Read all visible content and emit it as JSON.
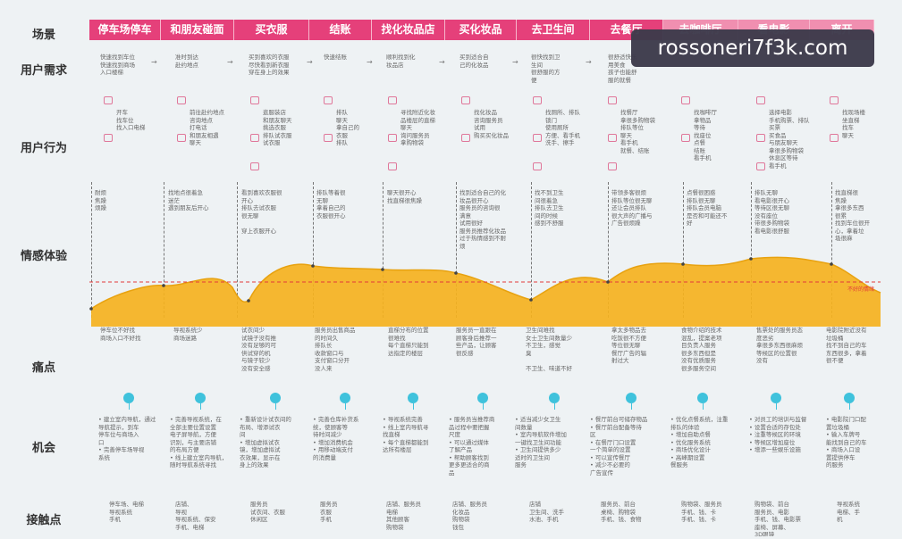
{
  "row_labels": {
    "scene": "场景",
    "need": "用户需求",
    "behavior": "用户行为",
    "emotion": "情感体验",
    "pain": "痛点",
    "opportunity": "机会",
    "touchpoint": "接触点"
  },
  "scenes": [
    "停车场停车",
    "和朋友碰面",
    "买衣服",
    "结账",
    "找化妆品店",
    "买化妆品",
    "去卫生间",
    "去餐厅",
    "去咖啡厅",
    "看电影",
    "离开"
  ],
  "needs": [
    "快速找到车位\n快速找到商场\n入口楼梯",
    "准时到达\n赴约地点",
    "买到喜欢的衣服\n尽快看到新衣服\n穿在身上的效果",
    "快速结账",
    "顺利找到化\n妆品店",
    "买到适合自\n己的化妆品",
    "很快找到卫\n生间\n很舒服的方\n便",
    "很舒适快乐\n用美食\n孩子也能舒\n服的就餐",
    "",
    "",
    ""
  ],
  "behaviors": [
    "开车\n找车位\n找入口电梯",
    "前往赴约地点\n咨询地点\n打电话\n和朋友相遇\n聊天",
    "逛服装店\n和朋友聊天\n挑选衣服\n排队试衣服\n试衣服",
    "排队\n聊天\n拿自己的\n衣服\n排队",
    "寻找附近化妆\n品楼层的直梯\n聊天\n询问服务员\n拿购物袋",
    "找化妆品\n咨询服务员\n试用\n购买买化妆品",
    "找厕所、排队\n锁门\n使用厕所\n方便、看手机\n洗手、擦手",
    "找餐厅\n拿很多购物袋\n排队等位\n聊天\n看手机\n就餐、结账",
    "找咖啡厅\n拿物品\n等待\n找座位\n点餐\n结账\n看手机",
    "选择电影\n手机购票、排队\n买票\n买食品\n与朋友聊天\n拿很多购物袋\n休息区等待\n看手机",
    "找现场楼\n坐直梯\n找车\n聊天"
  ],
  "emotions": [
    "耐烦\n焦躁\n烦躁",
    "找地点很着急\n迷茫\n遇到朋友后开心",
    "看到喜欢衣服很\n开心\n排队去试衣服\n很无聊\n\n穿上衣服开心",
    "排队等着很\n无聊\n拿着自己的\n衣服很开心",
    "聊天很开心\n找直梯很焦躁",
    "找到适合自己的化\n妆品很开心\n服务员的咨询很\n满意\n试用很好\n服务员推荐化妆品\n过于热情感到不耐\n烦",
    "找不到卫生\n间很着急\n排队去卫生\n间的时候\n感到不舒服",
    "带领多客很烦\n排队等位很无聊\n还让会员排队\n很大声的广播与\n广告很烦躁",
    "点餐很困惑\n排队很无聊\n排队会员电脑\n是否和可能还不\n好",
    "排队无聊\n看电影很开心\n等待区很无聊\n没有座位\n带很多购物袋\n看电影很舒服",
    "找直梯很\n焦躁\n拿很多东西\n很累\n找到车位很开\n心，拿着垃\n圾很麻"
  ],
  "curve_note": "不好的情绪",
  "pains": [
    "停车位不好找\n商场入口不好找",
    "导视系统少\n商场迷路",
    "试衣间少\n试镜子没有推\n没有足够的可\n供试穿的机\n与镜子较少\n没有安全感",
    "服务员出售商品\n的时间久\n排队长\n收款窗口与\n支付窗口分开\n没人来",
    "直梯分布的位置\n很难找\n每个直梯只能到\n达指定的楼层",
    "服务员一直跟在\n顾客身后推荐一\n些产品，让顾客\n很反感",
    "卫生间难找\n女士卫生间数量少\n不卫生，感觉\n臭\n\n不卫生、味道不好",
    "拿太多物品去\n吃饭很不方便\n等位很无聊\n餐厅广告的辐\n射过大",
    "食物介绍的技术\n混乱，提案老项\n目负责人服务\n很多东西但是\n没有优质服务\n很多服务空间",
    "售票处的服务员态\n度恶劣\n拿很多东西很麻烦\n等候区的位置很\n没有",
    "电影院附近没有\n垃圾桶\n找不到自己的车\n东西很多，拿着\n很不便"
  ],
  "opportunities": [
    "• 建立室内导航，通过\n导航提示，到车\n停车位与商场入\n口\n• 完善停车场导视\n系统",
    "• 完善导视系统，在\n全部主要位置设置\n电子屏导航，方便\n识别，与主要店铺\n的布局方便\n• 线上建立室内导航，\n随时导航系统寻找",
    "• 重新设计试衣间的\n布局、增添试衣\n间\n• 增加虚拟试衣\n镜，增加虚拟试\n衣效果，显示在\n身上的效果",
    "• 完善仓库补货系\n统，使顾客等\n待时间减少\n• 增加消费机会\n• 用移动端支付\n的消费量",
    "• 导视系统完善\n• 线上室内导航寻\n找直梯\n• 每个直梯都能到\n达所有楼层",
    "• 服务员当推荐商\n品过程中要把握\n尺度\n• 可以通过媒体\n了解产品\n• 帮助顾客找到\n更多更适合的商\n品",
    "• 适当减少女卫生\n间数量\n• 室内导航软件增加\n一键找卫生间功能\n• 卫生间提供多少\n适时的卫生间\n服务",
    "• 餐厅前台可储存物品\n• 餐厅前台配备等待\n区\n• 在餐厅门口设置\n一个简单的设置\n• 可以宣传餐厅\n• 减少不必要的\n广告宣传",
    "• 优化点餐系统，注重\n排队的体验\n• 增加自助点餐\n• 优化服务系统\n• 商场优化设计\n• 高峰期设置\n餐服务",
    "• 对员工的培训与监督\n• 设置合适的存包处\n• 注重等候区的环境\n• 等候区增加座位\n• 增添一些娱乐设施",
    "• 电影院门口配\n置垃圾桶\n• 输入车牌号\n能找到自己的车\n• 商场入口设\n置提供停车\n的服务"
  ],
  "touchpoints": [
    "停车场、电梯\n导视系统\n手机",
    "店铺、\n导视\n导视系统、保安\n手机、电梯",
    "服务员\n试衣间、衣服\n休闲区",
    "服务员\n衣服\n手机",
    "店铺、服务员\n电梯\n其他顾客\n购物袋",
    "店铺、服务员\n化妆品\n购物袋\n钱包",
    "店铺\n卫生间、洗手\n水池、手机",
    "服务员、前台\n桌椅、购物袋\n手机、钱、食物",
    "购物袋、服务员\n手机、钱、卡\n手机、钱、卡",
    "购物袋、前台\n服务员、电影\n手机、钱、电影票\n座椅、屏幕、\n3D眼镜",
    "导视系统\n电梯、手\n机"
  ],
  "watermark": "rossoneri7f3k.com"
}
